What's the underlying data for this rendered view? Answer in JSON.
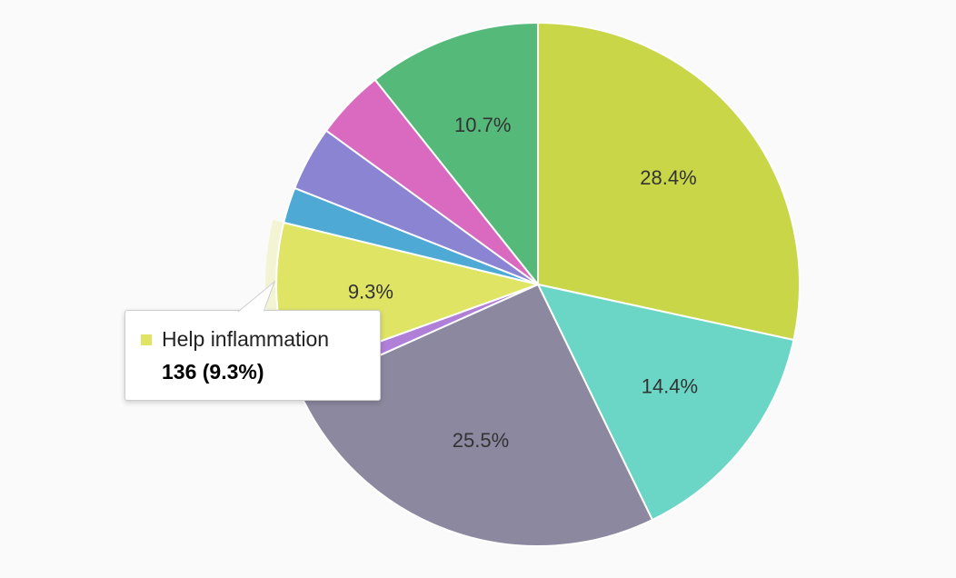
{
  "chart_data": {
    "type": "pie",
    "slices": [
      {
        "value": 28.4,
        "label": "28.4%",
        "color": "#c9d647"
      },
      {
        "value": 14.4,
        "label": "14.4%",
        "color": "#6bd6c5"
      },
      {
        "value": 25.5,
        "label": "25.5%",
        "color": "#8b889f"
      },
      {
        "value": 1.2,
        "label": "",
        "color": "#b07fd8"
      },
      {
        "value": 9.3,
        "label": "9.3%",
        "color": "#dfe464",
        "highlighted": true
      },
      {
        "value": 2.2,
        "label": "",
        "color": "#4eaad5"
      },
      {
        "value": 4.0,
        "label": "",
        "color": "#8a84d3"
      },
      {
        "value": 4.3,
        "label": "",
        "color": "#d96abf"
      },
      {
        "value": 10.7,
        "label": "10.7%",
        "color": "#55b97a"
      }
    ]
  },
  "tooltip": {
    "name": "Help inflammation",
    "value": "136 (9.3%)",
    "color": "#dfe464"
  }
}
